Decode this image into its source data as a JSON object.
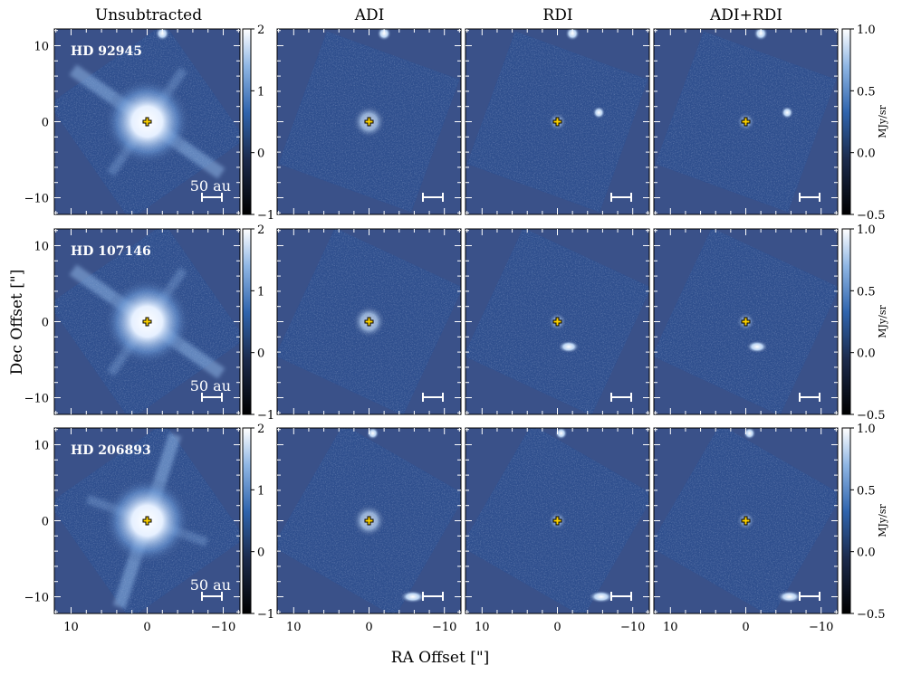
{
  "columns": [
    "Unsubtracted",
    "ADI",
    "RDI",
    "ADI+RDI"
  ],
  "rows": [
    {
      "star": "HD 92945"
    },
    {
      "star": "HD 107146"
    },
    {
      "star": "HD 206893"
    }
  ],
  "axes": {
    "x_label": "RA Offset [\"]",
    "y_label": "Dec Offset [\"]",
    "x_ticks": [
      "10",
      "0",
      "−10"
    ],
    "y_ticks": [
      "10",
      "0",
      "−10"
    ]
  },
  "colorbars": {
    "unsubtracted": {
      "ticks": [
        "2",
        "1",
        "0",
        "−1"
      ]
    },
    "processed": {
      "ticks": [
        "1.0",
        "0.5",
        "0.0",
        "−0.5"
      ],
      "unit": "MJy/sr"
    }
  },
  "scale_bar_label": "50 au",
  "colors": {
    "background_blue": "#3a5189",
    "star_marker": "#ffd400",
    "colormap_low": "#000000",
    "colormap_mid": "#2f64ad",
    "colormap_high": "#ffffff"
  }
}
